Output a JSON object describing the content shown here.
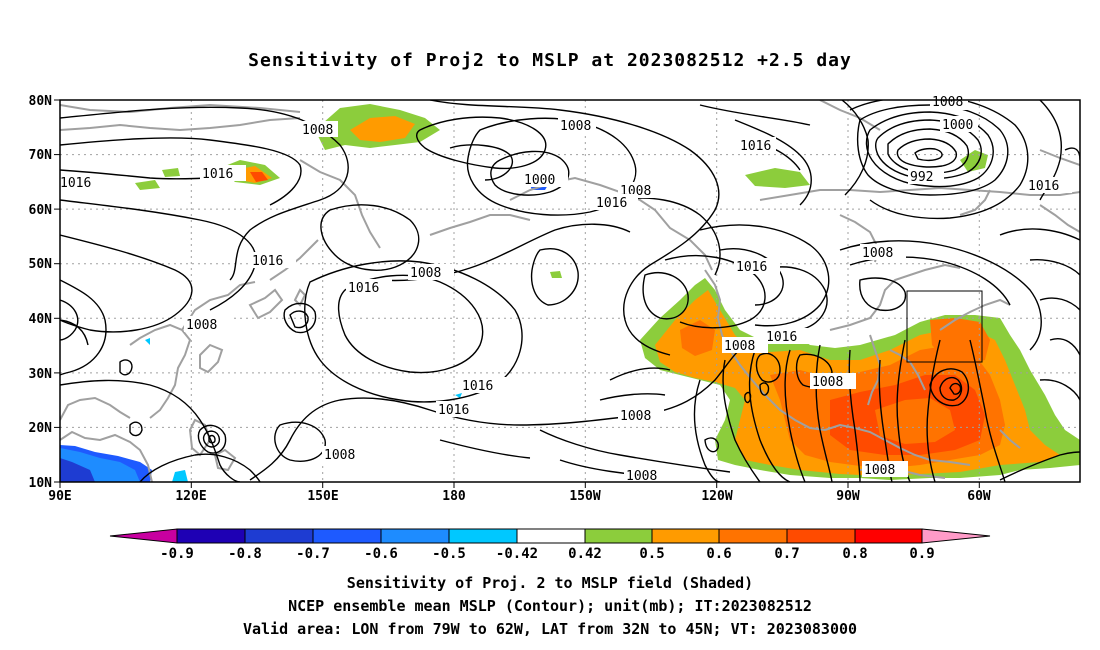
{
  "title": "Sensitivity of Proj2 to MSLP at 2023082512 +2.5 day",
  "map": {
    "lat_labels": [
      "80N",
      "70N",
      "60N",
      "50N",
      "40N",
      "30N",
      "20N",
      "10N"
    ],
    "lon_labels": [
      "90E",
      "120E",
      "150E",
      "180",
      "150W",
      "120W",
      "90W",
      "60W"
    ],
    "lon_range": [
      90,
      323
    ],
    "lat_range": [
      10,
      80
    ],
    "grid": "dotted",
    "contour_labels": [
      "1008",
      "1008",
      "1016",
      "1016",
      "1008",
      "1000",
      "1008",
      "1016",
      "1000",
      "992",
      "1016",
      "1016",
      "1008",
      "1016",
      "1008",
      "1016",
      "1016",
      "1008",
      "1016",
      "1008",
      "1016",
      "1016",
      "1008",
      "1008",
      "1008",
      "1008",
      "1008",
      "1008"
    ],
    "valid_box": {
      "lon": [
        281,
        298
      ],
      "lat": [
        32,
        45
      ]
    },
    "colors": {
      "neg_shading": "#00c8ff",
      "green": "#8ccd3c",
      "orange": "#ff9b00",
      "red": "#ff3c00"
    }
  },
  "colorbar": {
    "labels": [
      "-0.9",
      "-0.8",
      "-0.7",
      "-0.6",
      "-0.5",
      "-0.42",
      "0.42",
      "0.5",
      "0.6",
      "0.7",
      "0.8",
      "0.9"
    ],
    "colors": [
      "#c800a0",
      "#1e00b4",
      "#1e3cd2",
      "#1e5aff",
      "#1e8cff",
      "#00c8ff",
      "#ffffff",
      "#8ccd3c",
      "#ff9b00",
      "#ff7300",
      "#ff4b00",
      "#ff0000",
      "#ff9bc8"
    ]
  },
  "captions": [
    "Sensitivity of Proj. 2 to MSLP field (Shaded)",
    "NCEP ensemble mean MSLP (Contour); unit(mb); IT:2023082512",
    "Valid area: LON from 79W to 62W, LAT from 32N to 45N; VT: 2023083000"
  ]
}
